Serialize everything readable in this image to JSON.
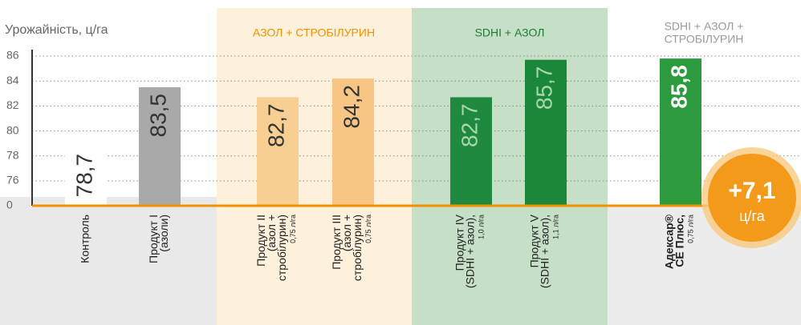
{
  "chart_data": {
    "type": "bar",
    "y_label": "Урожайність, ц/га",
    "categories": [
      [
        "Контроль"
      ],
      [
        "Продукт I",
        "(азоли)"
      ],
      [
        "Продукт II",
        "(азол +",
        "стробілурин)"
      ],
      [
        "Продукт III",
        "(азол +",
        "стробілурин)"
      ],
      [
        "Продукт IV",
        "(SDHI + азол),"
      ],
      [
        "Продукт V",
        "(SDHI + азол),"
      ],
      [
        "Адексар®",
        "СЕ Плюс,"
      ]
    ],
    "doses": [
      null,
      null,
      "0,75 л/га",
      "0,75 л/га",
      "1,0 л/га",
      "1,1 л/га",
      "0,75 л/га"
    ],
    "values": [
      78.7,
      83.5,
      82.7,
      84.2,
      82.7,
      85.7,
      85.8
    ],
    "value_labels": [
      "78,7",
      "83,5",
      "82,7",
      "84,2",
      "82,7",
      "85,7",
      "85,8"
    ],
    "colors": [
      "#ffffff",
      "#a9a9a9",
      "#f8cf92",
      "#f7c684",
      "#1f8a3f",
      "#1a873b",
      "#2b9b3d"
    ],
    "groups": [
      [
        "АЗОЛ + СТРОБІЛУРИН"
      ],
      [
        "SDHI + АЗОЛ"
      ],
      [
        "SDHI + АЗОЛ +",
        "СТРОБІЛУРИН"
      ]
    ],
    "annotation": {
      "value": "+7,1",
      "unit": "ц/га"
    },
    "ylim": [
      0,
      86
    ],
    "yticks": [
      0,
      76,
      78,
      80,
      82,
      84,
      86
    ],
    "grid": true
  }
}
